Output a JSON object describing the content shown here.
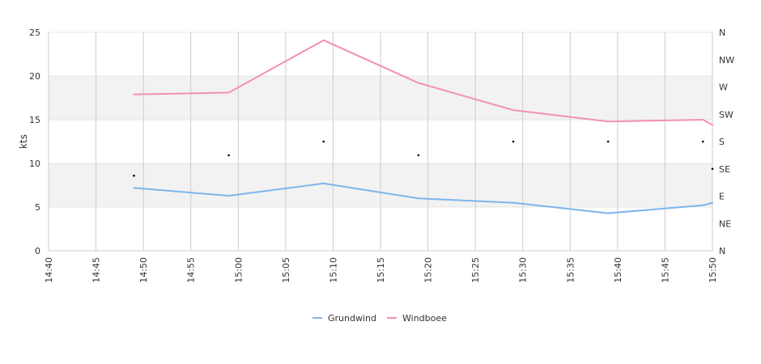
{
  "chart_data": {
    "type": "line",
    "ylabel": "kts",
    "ylim": [
      0,
      25
    ],
    "y_ticks": [
      "0",
      "5",
      "10",
      "15",
      "20",
      "25"
    ],
    "x_ticks": [
      "14:40",
      "14:45",
      "14:50",
      "14:55",
      "15:00",
      "15:05",
      "15:10",
      "15:15",
      "15:20",
      "15:25",
      "15:30",
      "15:35",
      "15:40",
      "15:45",
      "15:50"
    ],
    "x_range": [
      "14:40",
      "15:50"
    ],
    "y2_ticks": [
      "N",
      "NE",
      "E",
      "SE",
      "S",
      "SW",
      "W",
      "NW",
      "N"
    ],
    "grid": true,
    "banded_rows": [
      [
        5,
        10
      ],
      [
        15,
        20
      ]
    ],
    "legend_position": "bottom",
    "series": [
      {
        "name": "Grundwind",
        "color": "#7cb5ec",
        "points": [
          {
            "x": "14:49",
            "y": 7.2
          },
          {
            "x": "14:59",
            "y": 6.3
          },
          {
            "x": "15:09",
            "y": 7.7
          },
          {
            "x": "15:19",
            "y": 6.0
          },
          {
            "x": "15:29",
            "y": 5.5
          },
          {
            "x": "15:39",
            "y": 4.3
          },
          {
            "x": "15:49",
            "y": 5.2
          },
          {
            "x": "15:50",
            "y": 5.5
          }
        ]
      },
      {
        "name": "Windboee",
        "color": "#f28fb8",
        "points": [
          {
            "x": "14:49",
            "y": 17.9
          },
          {
            "x": "14:59",
            "y": 18.1
          },
          {
            "x": "15:09",
            "y": 24.1
          },
          {
            "x": "15:19",
            "y": 19.2
          },
          {
            "x": "15:29",
            "y": 16.1
          },
          {
            "x": "15:39",
            "y": 14.8
          },
          {
            "x": "15:49",
            "y": 15.0
          },
          {
            "x": "15:50",
            "y": 14.4
          }
        ]
      }
    ],
    "direction_markers": [
      {
        "x": "14:49",
        "direction": "SE",
        "position": 2.75
      },
      {
        "x": "14:59",
        "direction": "S",
        "position": 3.5
      },
      {
        "x": "15:09",
        "direction": "S",
        "position": 4.0
      },
      {
        "x": "15:19",
        "direction": "S",
        "position": 3.5
      },
      {
        "x": "15:29",
        "direction": "S",
        "position": 4.0
      },
      {
        "x": "15:39",
        "direction": "S",
        "position": 4.0
      },
      {
        "x": "15:49",
        "direction": "S",
        "position": 4.0
      },
      {
        "x": "15:50",
        "direction": "SE",
        "position": 3.0
      }
    ]
  }
}
